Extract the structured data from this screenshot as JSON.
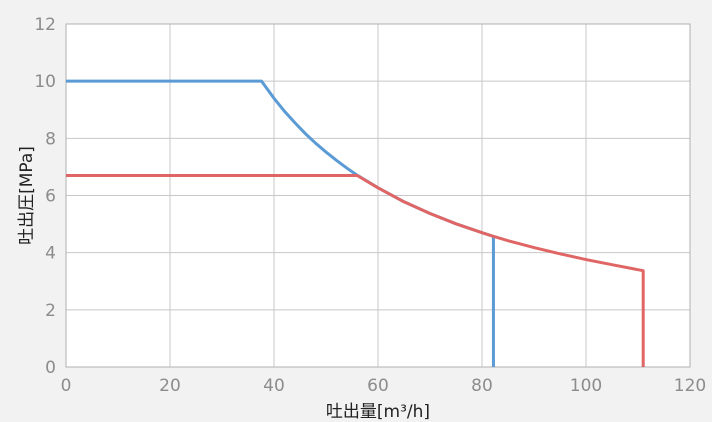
{
  "chart_data": {
    "type": "line",
    "xlabel": "吐出量[m³/h]",
    "ylabel": "吐出圧[MPa]",
    "xlim": [
      0,
      120
    ],
    "ylim": [
      0,
      12
    ],
    "xticks": [
      0,
      20,
      40,
      60,
      80,
      100,
      120
    ],
    "yticks": [
      0,
      2,
      4,
      6,
      8,
      10,
      12
    ],
    "grid": true,
    "legend": "none",
    "series": [
      {
        "color": "#5b9bd5",
        "points": [
          [
            0,
            10.0
          ],
          [
            37.6,
            10.0
          ],
          [
            40,
            9.4
          ],
          [
            42,
            8.95
          ],
          [
            44,
            8.55
          ],
          [
            46,
            8.17
          ],
          [
            48,
            7.83
          ],
          [
            50,
            7.52
          ],
          [
            52,
            7.23
          ],
          [
            54,
            6.96
          ],
          [
            56,
            6.71
          ],
          [
            60,
            6.27
          ],
          [
            65,
            5.78
          ],
          [
            70,
            5.37
          ],
          [
            75,
            5.01
          ],
          [
            80,
            4.7
          ],
          [
            82.2,
            4.57
          ],
          [
            82.2,
            0
          ]
        ]
      },
      {
        "color": "#e06666",
        "points": [
          [
            0,
            6.7
          ],
          [
            56,
            6.7
          ],
          [
            60,
            6.27
          ],
          [
            65,
            5.78
          ],
          [
            70,
            5.37
          ],
          [
            75,
            5.01
          ],
          [
            80,
            4.7
          ],
          [
            82.2,
            4.57
          ],
          [
            85,
            4.42
          ],
          [
            90,
            4.18
          ],
          [
            95,
            3.96
          ],
          [
            100,
            3.76
          ],
          [
            105,
            3.58
          ],
          [
            111,
            3.37
          ],
          [
            111,
            0
          ]
        ]
      }
    ]
  }
}
